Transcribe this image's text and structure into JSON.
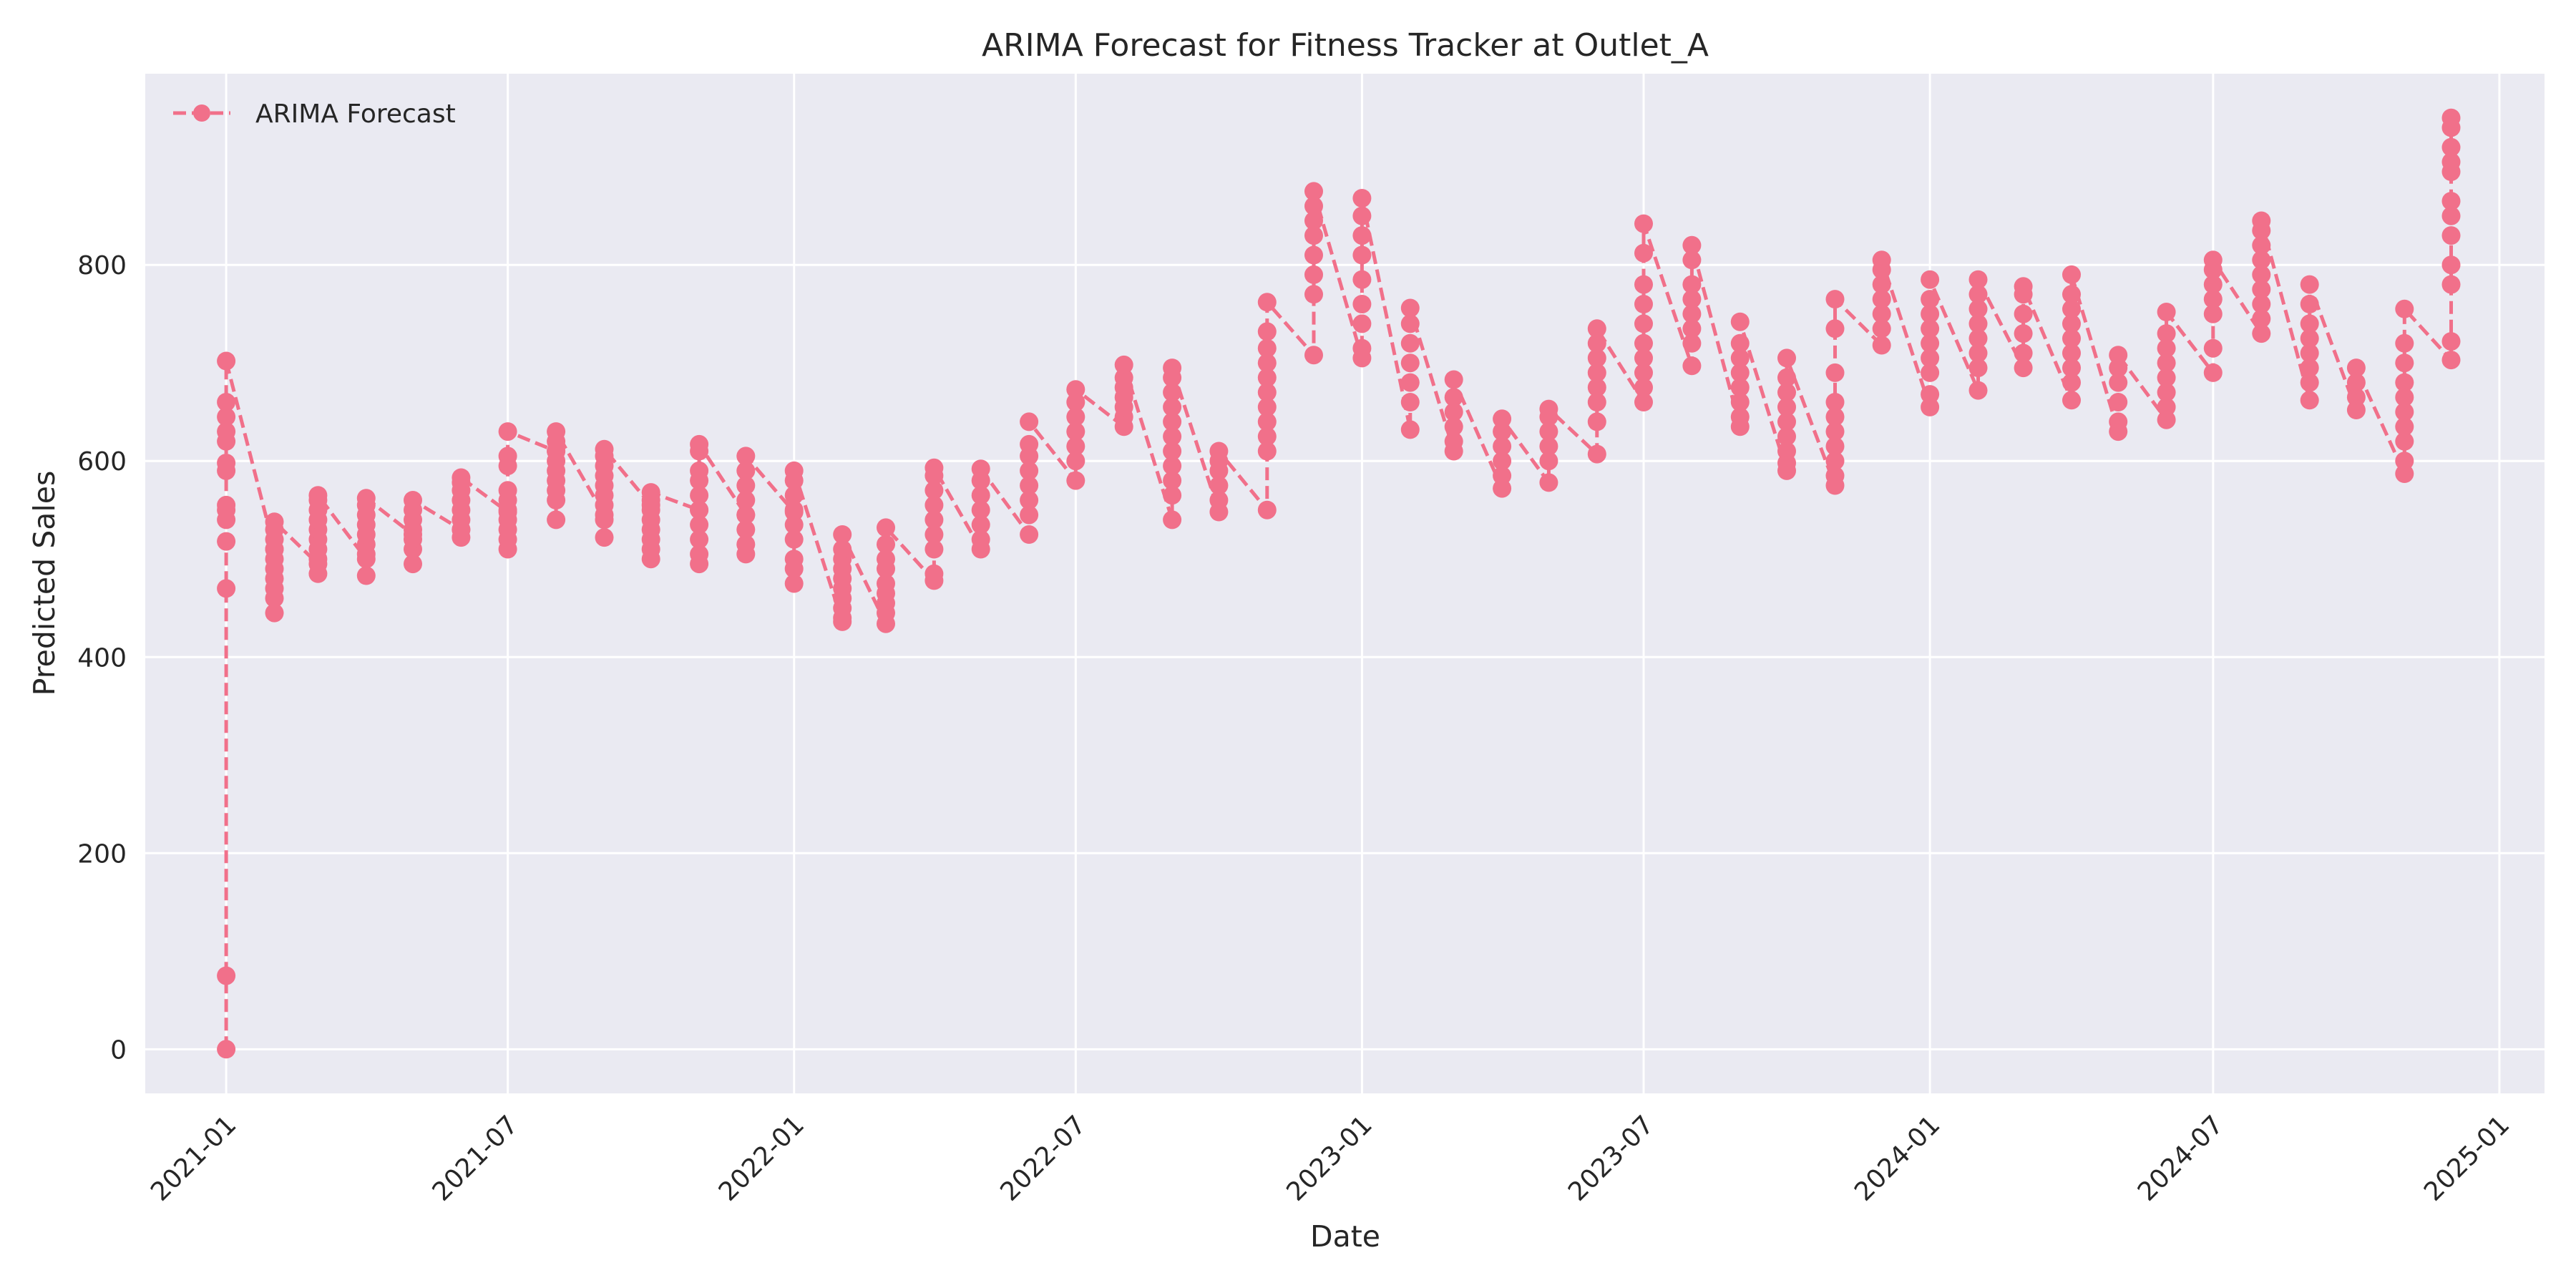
{
  "chart_data": {
    "type": "line",
    "title": "ARIMA Forecast for Fitness Tracker at Outlet_A",
    "xlabel": "Date",
    "ylabel": "Predicted Sales",
    "x_range": [
      "2020-11-10",
      "2025-01-30"
    ],
    "ylim": [
      -45,
      995
    ],
    "x_ticks": [
      "2021-01",
      "2021-07",
      "2022-01",
      "2022-07",
      "2023-01",
      "2023-07",
      "2024-01",
      "2024-07",
      "2025-01"
    ],
    "x_tick_dates": [
      "2021-01-01",
      "2021-07-01",
      "2022-01-01",
      "2022-07-01",
      "2023-01-01",
      "2023-07-01",
      "2024-01-01",
      "2024-07-01",
      "2025-01-01"
    ],
    "y_ticks": [
      0,
      200,
      400,
      600,
      800
    ],
    "grid": true,
    "background": "#eaeaf2",
    "legend": {
      "placement": "top-left",
      "entries": [
        "ARIMA Forecast"
      ]
    },
    "series": [
      {
        "name": "ARIMA Forecast",
        "color": "#f1708a",
        "marker": "circle",
        "line_style": "dashed",
        "groups": [
          {
            "date": "2021-01-01",
            "values": [
              0,
              75,
              470,
              518,
              540,
              550,
              555,
              590,
              598,
              620,
              630,
              645,
              660,
              702
            ]
          },
          {
            "date": "2021-02-01",
            "values": [
              510,
              445,
              460,
              470,
              480,
              490,
              500,
              510,
              520,
              530,
              538
            ]
          },
          {
            "date": "2021-03-01",
            "values": [
              495,
              485,
              500,
              510,
              520,
              530,
              540,
              550,
              560,
              565
            ]
          },
          {
            "date": "2021-04-01",
            "values": [
              500,
              483,
              505,
              515,
              525,
              535,
              545,
              555,
              562
            ]
          },
          {
            "date": "2021-05-01",
            "values": [
              525,
              495,
              510,
              520,
              530,
              540,
              550,
              560
            ]
          },
          {
            "date": "2021-06-01",
            "values": [
              530,
              522,
              530,
              540,
              550,
              560,
              570,
              578,
              583
            ]
          },
          {
            "date": "2021-07-01",
            "values": [
              548,
              510,
              520,
              530,
              540,
              550,
              560,
              570,
              595,
              605,
              630
            ]
          },
          {
            "date": "2021-08-01",
            "values": [
              610,
              540,
              560,
              570,
              580,
              590,
              600,
              610,
              620,
              630
            ]
          },
          {
            "date": "2021-09-01",
            "values": [
              545,
              522,
              540,
              555,
              565,
              575,
              585,
              595,
              605,
              612
            ]
          },
          {
            "date": "2021-10-01",
            "values": [
              555,
              500,
              510,
              520,
              530,
              540,
              550,
              560,
              568
            ]
          },
          {
            "date": "2021-11-01",
            "values": [
              550,
              495,
              505,
              520,
              535,
              550,
              565,
              580,
              590,
              610,
              617
            ]
          },
          {
            "date": "2021-12-01",
            "values": [
              545,
              505,
              515,
              530,
              545,
              560,
              575,
              590,
              605
            ]
          },
          {
            "date": "2022-01-01",
            "values": [
              548,
              475,
              490,
              500,
              520,
              535,
              550,
              565,
              580,
              590
            ]
          },
          {
            "date": "2022-02-01",
            "values": [
              436,
              440,
              450,
              460,
              470,
              480,
              490,
              500,
              510,
              525
            ]
          },
          {
            "date": "2022-03-01",
            "values": [
              434,
              445,
              455,
              465,
              475,
              490,
              500,
              515,
              532
            ]
          },
          {
            "date": "2022-04-01",
            "values": [
              478,
              485,
              510,
              525,
              540,
              555,
              570,
              585,
              593
            ]
          },
          {
            "date": "2022-05-01",
            "values": [
              510,
              520,
              535,
              550,
              565,
              580,
              592
            ]
          },
          {
            "date": "2022-06-01",
            "values": [
              525,
              545,
              560,
              575,
              590,
              605,
              617,
              640
            ]
          },
          {
            "date": "2022-07-01",
            "values": [
              580,
              600,
              615,
              630,
              645,
              660,
              673
            ]
          },
          {
            "date": "2022-08-01",
            "values": [
              635,
              645,
              655,
              665,
              675,
              685,
              698
            ]
          },
          {
            "date": "2022-09-01",
            "values": [
              540,
              565,
              580,
              595,
              610,
              625,
              640,
              655,
              670,
              685,
              695
            ]
          },
          {
            "date": "2022-10-01",
            "values": [
              548,
              560,
              575,
              590,
              600,
              610
            ]
          },
          {
            "date": "2022-11-01",
            "values": [
              550,
              610,
              625,
              640,
              655,
              670,
              685,
              700,
              715,
              732,
              762
            ]
          },
          {
            "date": "2022-12-01",
            "values": [
              708,
              770,
              790,
              810,
              830,
              845,
              860,
              875
            ]
          },
          {
            "date": "2023-01-01",
            "values": [
              705,
              715,
              740,
              760,
              785,
              810,
              830,
              850,
              868
            ]
          },
          {
            "date": "2023-02-01",
            "values": [
              632,
              660,
              680,
              700,
              720,
              740,
              756
            ]
          },
          {
            "date": "2023-03-01",
            "values": [
              610,
              620,
              635,
              650,
              665,
              683
            ]
          },
          {
            "date": "2023-04-01",
            "values": [
              572,
              585,
              600,
              615,
              630,
              643
            ]
          },
          {
            "date": "2023-05-01",
            "values": [
              578,
              600,
              615,
              630,
              645,
              653
            ]
          },
          {
            "date": "2023-06-01",
            "values": [
              607,
              640,
              660,
              675,
              690,
              705,
              720,
              735
            ]
          },
          {
            "date": "2023-07-01",
            "values": [
              660,
              675,
              690,
              705,
              720,
              740,
              760,
              780,
              812,
              842
            ]
          },
          {
            "date": "2023-08-01",
            "values": [
              697,
              720,
              735,
              750,
              765,
              780,
              805,
              820
            ]
          },
          {
            "date": "2023-09-01",
            "values": [
              635,
              645,
              660,
              675,
              690,
              705,
              720,
              742
            ]
          },
          {
            "date": "2023-10-01",
            "values": [
              590,
              598,
              610,
              625,
              640,
              655,
              670,
              685,
              705
            ]
          },
          {
            "date": "2023-11-01",
            "values": [
              575,
              585,
              600,
              615,
              630,
              645,
              660,
              690,
              735,
              765
            ]
          },
          {
            "date": "2023-12-01",
            "values": [
              718,
              735,
              750,
              765,
              780,
              795,
              805
            ]
          },
          {
            "date": "2024-01-01",
            "values": [
              655,
              668,
              690,
              705,
              720,
              735,
              750,
              765,
              785
            ]
          },
          {
            "date": "2024-02-01",
            "values": [
              672,
              695,
              710,
              725,
              740,
              755,
              770,
              785
            ]
          },
          {
            "date": "2024-03-01",
            "values": [
              695,
              710,
              730,
              750,
              770,
              778
            ]
          },
          {
            "date": "2024-04-01",
            "values": [
              662,
              680,
              695,
              710,
              725,
              740,
              755,
              770,
              790
            ]
          },
          {
            "date": "2024-05-01",
            "values": [
              630,
              640,
              660,
              680,
              695,
              708
            ]
          },
          {
            "date": "2024-06-01",
            "values": [
              642,
              655,
              670,
              685,
              700,
              715,
              730,
              752
            ]
          },
          {
            "date": "2024-07-01",
            "values": [
              690,
              715,
              750,
              765,
              780,
              795,
              805
            ]
          },
          {
            "date": "2024-08-01",
            "values": [
              730,
              745,
              760,
              775,
              790,
              805,
              820,
              835,
              845
            ]
          },
          {
            "date": "2024-09-01",
            "values": [
              662,
              680,
              695,
              710,
              725,
              740,
              760,
              780
            ]
          },
          {
            "date": "2024-10-01",
            "values": [
              652,
              665,
              680,
              695
            ]
          },
          {
            "date": "2024-11-01",
            "values": [
              587,
              600,
              620,
              635,
              650,
              665,
              680,
              700,
              720,
              755
            ]
          },
          {
            "date": "2024-12-01",
            "values": [
              703,
              722,
              780,
              800,
              830,
              850,
              865,
              895,
              905,
              920,
              940,
              950
            ]
          }
        ]
      }
    ]
  }
}
